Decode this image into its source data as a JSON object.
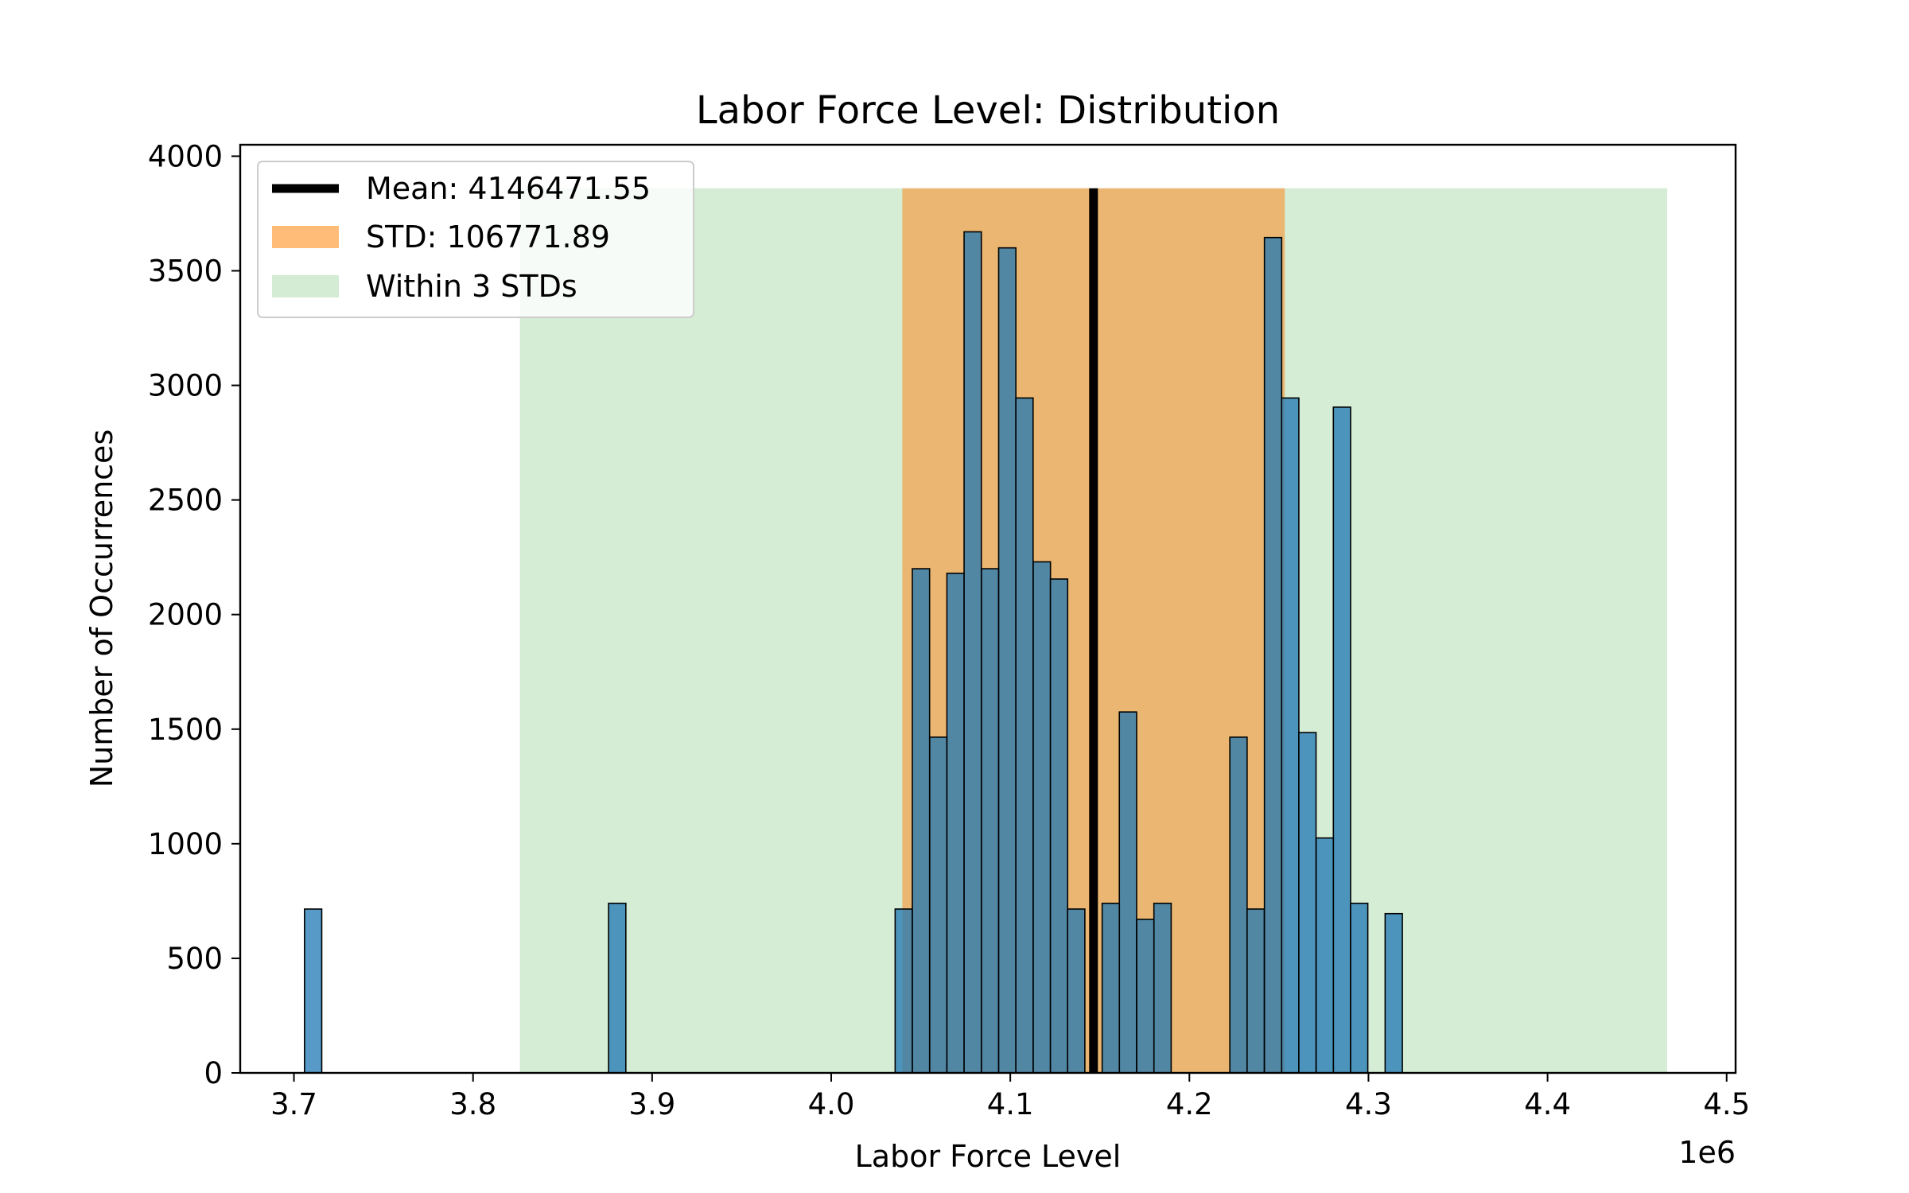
{
  "chart_data": {
    "type": "bar",
    "title": "Labor Force Level: Distribution",
    "xlabel": "Labor Force Level",
    "ylabel": "Number of Occurrences",
    "x_offset_label": "1e6",
    "xlim": [
      3.67,
      4.505
    ],
    "ylim": [
      0,
      4050
    ],
    "xticks": [
      3.7,
      3.8,
      3.9,
      4.0,
      4.1,
      4.2,
      4.3,
      4.4,
      4.5
    ],
    "xtick_labels": [
      "3.7",
      "3.8",
      "3.9",
      "4.0",
      "4.1",
      "4.2",
      "4.3",
      "4.4",
      "4.5"
    ],
    "yticks": [
      0,
      500,
      1000,
      1500,
      2000,
      2500,
      3000,
      3500,
      4000
    ],
    "ytick_labels": [
      "0",
      "500",
      "1000",
      "1500",
      "2000",
      "2500",
      "3000",
      "3500",
      "4000"
    ],
    "bin_width": 0.00963,
    "bins": [
      {
        "x": 3.7059,
        "count": 715
      },
      {
        "x": 3.8757,
        "count": 740
      },
      {
        "x": 4.0357,
        "count": 715
      },
      {
        "x": 4.0453,
        "count": 2200
      },
      {
        "x": 4.055,
        "count": 1465
      },
      {
        "x": 4.0646,
        "count": 2180
      },
      {
        "x": 4.0742,
        "count": 3670
      },
      {
        "x": 4.0839,
        "count": 2200
      },
      {
        "x": 4.0935,
        "count": 3600
      },
      {
        "x": 4.1031,
        "count": 2945
      },
      {
        "x": 4.1128,
        "count": 2230
      },
      {
        "x": 4.1224,
        "count": 2155
      },
      {
        "x": 4.132,
        "count": 715
      },
      {
        "x": 4.1513,
        "count": 740
      },
      {
        "x": 4.1609,
        "count": 1575
      },
      {
        "x": 4.1706,
        "count": 670
      },
      {
        "x": 4.1802,
        "count": 740
      },
      {
        "x": 4.2226,
        "count": 1465
      },
      {
        "x": 4.2322,
        "count": 715
      },
      {
        "x": 4.2419,
        "count": 3645
      },
      {
        "x": 4.2515,
        "count": 2945
      },
      {
        "x": 4.2611,
        "count": 1485
      },
      {
        "x": 4.2708,
        "count": 1025
      },
      {
        "x": 4.2804,
        "count": 2905
      },
      {
        "x": 4.29,
        "count": 740
      },
      {
        "x": 4.3093,
        "count": 695
      }
    ],
    "mean": 4146471.55,
    "std": 106771.89,
    "band_top": 3860,
    "legend": {
      "position": "upper-left",
      "entries": [
        {
          "label": "Mean: 4146471.55",
          "kind": "line",
          "color": "#000000"
        },
        {
          "label": "STD: 106771.89",
          "kind": "patch",
          "color": "#ffbb78"
        },
        {
          "label": "Within 3 STDs",
          "kind": "patch",
          "color": "#d4ebd4"
        }
      ]
    },
    "colors": {
      "bar_fill": "#1f77b4",
      "bar_alpha": 0.75,
      "bar_edge": "#000000",
      "std_band": "#ff7f0e",
      "std_band_alpha": 0.5,
      "three_std_band": "#2ca02c",
      "three_std_band_alpha": 0.2,
      "mean_line": "#000000"
    }
  }
}
